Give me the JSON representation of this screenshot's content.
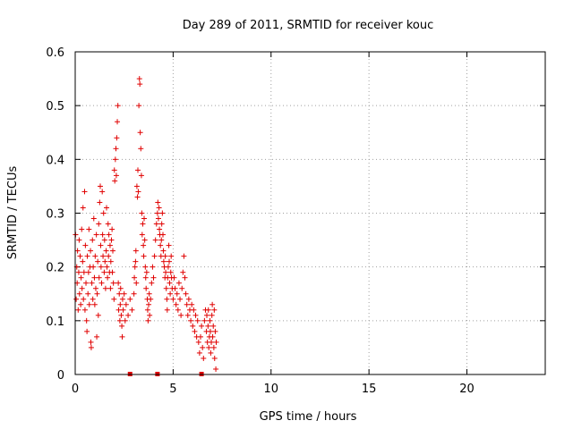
{
  "chart_data": {
    "type": "scatter",
    "title": "Day 289 of 2011, SRMTID for receiver kouc",
    "xlabel": "GPS time / hours",
    "ylabel": "SRMTID / TECUs",
    "xlim": [
      0,
      24
    ],
    "ylim": [
      0,
      0.6
    ],
    "x_ticks": [
      0,
      5,
      10,
      15,
      20
    ],
    "x_tick_labels": [
      "0",
      "5",
      "10",
      "15",
      "20"
    ],
    "y_ticks": [
      0,
      0.1,
      0.2,
      0.3,
      0.4,
      0.5,
      0.6
    ],
    "y_tick_labels": [
      "0",
      "0.1",
      "0.2",
      "0.3",
      "0.4",
      "0.5",
      "0.6"
    ],
    "grid": true,
    "legend": "none",
    "marker": "+",
    "color": "#e00000",
    "data_gap_markers_x": [
      2.8,
      4.2,
      6.45
    ],
    "series": [
      {
        "name": "SRMTID",
        "points": [
          [
            0.02,
            0.26
          ],
          [
            0.05,
            0.14
          ],
          [
            0.08,
            0.2
          ],
          [
            0.1,
            0.17
          ],
          [
            0.12,
            0.23
          ],
          [
            0.15,
            0.12
          ],
          [
            0.18,
            0.19
          ],
          [
            0.2,
            0.25
          ],
          [
            0.22,
            0.15
          ],
          [
            0.25,
            0.22
          ],
          [
            0.28,
            0.13
          ],
          [
            0.3,
            0.18
          ],
          [
            0.33,
            0.27
          ],
          [
            0.35,
            0.16
          ],
          [
            0.38,
            0.21
          ],
          [
            0.4,
            0.31
          ],
          [
            0.42,
            0.14
          ],
          [
            0.45,
            0.19
          ],
          [
            0.48,
            0.34
          ],
          [
            0.5,
            0.12
          ],
          [
            0.52,
            0.24
          ],
          [
            0.55,
            0.17
          ],
          [
            0.58,
            0.1
          ],
          [
            0.6,
            0.08
          ],
          [
            0.62,
            0.22
          ],
          [
            0.65,
            0.15
          ],
          [
            0.68,
            0.19
          ],
          [
            0.7,
            0.27
          ],
          [
            0.72,
            0.13
          ],
          [
            0.75,
            0.2
          ],
          [
            0.78,
            0.23
          ],
          [
            0.8,
            0.06
          ],
          [
            0.82,
            0.05
          ],
          [
            0.85,
            0.17
          ],
          [
            0.88,
            0.25
          ],
          [
            0.9,
            0.14
          ],
          [
            0.92,
            0.2
          ],
          [
            0.95,
            0.29
          ],
          [
            0.98,
            0.18
          ],
          [
            1.0,
            0.13
          ],
          [
            1.02,
            0.22
          ],
          [
            1.05,
            0.16
          ],
          [
            1.08,
            0.26
          ],
          [
            1.1,
            0.07
          ],
          [
            1.12,
            0.15
          ],
          [
            1.15,
            0.21
          ],
          [
            1.18,
            0.11
          ],
          [
            1.2,
            0.28
          ],
          [
            1.22,
            0.18
          ],
          [
            1.25,
            0.32
          ],
          [
            1.28,
            0.35
          ],
          [
            1.3,
            0.24
          ],
          [
            1.32,
            0.2
          ],
          [
            1.35,
            0.17
          ],
          [
            1.38,
            0.34
          ],
          [
            1.4,
            0.26
          ],
          [
            1.42,
            0.22
          ],
          [
            1.45,
            0.3
          ],
          [
            1.48,
            0.19
          ],
          [
            1.5,
            0.25
          ],
          [
            1.52,
            0.21
          ],
          [
            1.55,
            0.16
          ],
          [
            1.58,
            0.23
          ],
          [
            1.6,
            0.31
          ],
          [
            1.62,
            0.2
          ],
          [
            1.65,
            0.18
          ],
          [
            1.68,
            0.28
          ],
          [
            1.7,
            0.22
          ],
          [
            1.72,
            0.26
          ],
          [
            1.75,
            0.19
          ],
          [
            1.78,
            0.24
          ],
          [
            1.8,
            0.16
          ],
          [
            1.82,
            0.21
          ],
          [
            1.85,
            0.25
          ],
          [
            1.88,
            0.27
          ],
          [
            1.9,
            0.19
          ],
          [
            1.92,
            0.23
          ],
          [
            1.95,
            0.17
          ],
          [
            1.98,
            0.14
          ],
          [
            2.0,
            0.38
          ],
          [
            2.02,
            0.36
          ],
          [
            2.05,
            0.4
          ],
          [
            2.08,
            0.42
          ],
          [
            2.1,
            0.37
          ],
          [
            2.12,
            0.44
          ],
          [
            2.15,
            0.47
          ],
          [
            2.18,
            0.5
          ],
          [
            2.2,
            0.17
          ],
          [
            2.22,
            0.12
          ],
          [
            2.25,
            0.15
          ],
          [
            2.28,
            0.1
          ],
          [
            2.3,
            0.13
          ],
          [
            2.32,
            0.16
          ],
          [
            2.35,
            0.11
          ],
          [
            2.38,
            0.09
          ],
          [
            2.4,
            0.07
          ],
          [
            2.42,
            0.14
          ],
          [
            2.45,
            0.12
          ],
          [
            2.5,
            0.15
          ],
          [
            2.55,
            0.1
          ],
          [
            2.6,
            0.13
          ],
          [
            2.7,
            0.11
          ],
          [
            2.8,
            0.14
          ],
          [
            2.9,
            0.12
          ],
          [
            3.0,
            0.15
          ],
          [
            3.02,
            0.18
          ],
          [
            3.05,
            0.2
          ],
          [
            3.08,
            0.21
          ],
          [
            3.1,
            0.23
          ],
          [
            3.12,
            0.17
          ],
          [
            3.15,
            0.35
          ],
          [
            3.18,
            0.33
          ],
          [
            3.2,
            0.38
          ],
          [
            3.22,
            0.34
          ],
          [
            3.25,
            0.5
          ],
          [
            3.28,
            0.55
          ],
          [
            3.3,
            0.54
          ],
          [
            3.32,
            0.45
          ],
          [
            3.35,
            0.42
          ],
          [
            3.38,
            0.37
          ],
          [
            3.4,
            0.3
          ],
          [
            3.42,
            0.26
          ],
          [
            3.45,
            0.28
          ],
          [
            3.48,
            0.24
          ],
          [
            3.5,
            0.22
          ],
          [
            3.52,
            0.29
          ],
          [
            3.55,
            0.25
          ],
          [
            3.58,
            0.2
          ],
          [
            3.6,
            0.18
          ],
          [
            3.62,
            0.16
          ],
          [
            3.65,
            0.19
          ],
          [
            3.68,
            0.14
          ],
          [
            3.7,
            0.12
          ],
          [
            3.72,
            0.1
          ],
          [
            3.75,
            0.13
          ],
          [
            3.78,
            0.15
          ],
          [
            3.8,
            0.11
          ],
          [
            3.85,
            0.14
          ],
          [
            3.9,
            0.17
          ],
          [
            3.95,
            0.2
          ],
          [
            4.0,
            0.18
          ],
          [
            4.05,
            0.22
          ],
          [
            4.1,
            0.25
          ],
          [
            4.15,
            0.28
          ],
          [
            4.2,
            0.3
          ],
          [
            4.22,
            0.32
          ],
          [
            4.25,
            0.29
          ],
          [
            4.28,
            0.31
          ],
          [
            4.3,
            0.27
          ],
          [
            4.32,
            0.26
          ],
          [
            4.35,
            0.24
          ],
          [
            4.38,
            0.22
          ],
          [
            4.4,
            0.25
          ],
          [
            4.42,
            0.28
          ],
          [
            4.45,
            0.3
          ],
          [
            4.48,
            0.26
          ],
          [
            4.5,
            0.23
          ],
          [
            4.52,
            0.21
          ],
          [
            4.55,
            0.2
          ],
          [
            4.58,
            0.18
          ],
          [
            4.6,
            0.22
          ],
          [
            4.62,
            0.19
          ],
          [
            4.65,
            0.16
          ],
          [
            4.68,
            0.14
          ],
          [
            4.7,
            0.12
          ],
          [
            4.72,
            0.18
          ],
          [
            4.75,
            0.2
          ],
          [
            4.78,
            0.24
          ],
          [
            4.8,
            0.21
          ],
          [
            4.82,
            0.17
          ],
          [
            4.85,
            0.15
          ],
          [
            4.88,
            0.19
          ],
          [
            4.9,
            0.22
          ],
          [
            4.92,
            0.18
          ],
          [
            4.95,
            0.16
          ],
          [
            5.0,
            0.14
          ],
          [
            5.05,
            0.18
          ],
          [
            5.1,
            0.16
          ],
          [
            5.15,
            0.13
          ],
          [
            5.2,
            0.15
          ],
          [
            5.25,
            0.12
          ],
          [
            5.3,
            0.17
          ],
          [
            5.35,
            0.14
          ],
          [
            5.4,
            0.11
          ],
          [
            5.45,
            0.16
          ],
          [
            5.5,
            0.19
          ],
          [
            5.55,
            0.22
          ],
          [
            5.6,
            0.18
          ],
          [
            5.65,
            0.15
          ],
          [
            5.7,
            0.13
          ],
          [
            5.75,
            0.11
          ],
          [
            5.8,
            0.14
          ],
          [
            5.85,
            0.12
          ],
          [
            5.9,
            0.1
          ],
          [
            5.95,
            0.13
          ],
          [
            6.0,
            0.09
          ],
          [
            6.05,
            0.12
          ],
          [
            6.1,
            0.08
          ],
          [
            6.15,
            0.11
          ],
          [
            6.2,
            0.07
          ],
          [
            6.25,
            0.1
          ],
          [
            6.3,
            0.06
          ],
          [
            6.35,
            0.04
          ],
          [
            6.4,
            0.07
          ],
          [
            6.45,
            0.09
          ],
          [
            6.5,
            0.05
          ],
          [
            6.55,
            0.03
          ],
          [
            6.6,
            0.1
          ],
          [
            6.65,
            0.12
          ],
          [
            6.7,
            0.08
          ],
          [
            6.72,
            0.11
          ],
          [
            6.75,
            0.06
          ],
          [
            6.78,
            0.09
          ],
          [
            6.8,
            0.12
          ],
          [
            6.82,
            0.05
          ],
          [
            6.85,
            0.07
          ],
          [
            6.88,
            0.1
          ],
          [
            6.9,
            0.08
          ],
          [
            6.92,
            0.04
          ],
          [
            6.95,
            0.06
          ],
          [
            6.98,
            0.11
          ],
          [
            7.0,
            0.13
          ],
          [
            7.02,
            0.07
          ],
          [
            7.05,
            0.09
          ],
          [
            7.08,
            0.05
          ],
          [
            7.1,
            0.12
          ],
          [
            7.12,
            0.03
          ],
          [
            7.15,
            0.08
          ],
          [
            7.18,
            0.01
          ],
          [
            7.2,
            0.06
          ]
        ]
      }
    ]
  }
}
